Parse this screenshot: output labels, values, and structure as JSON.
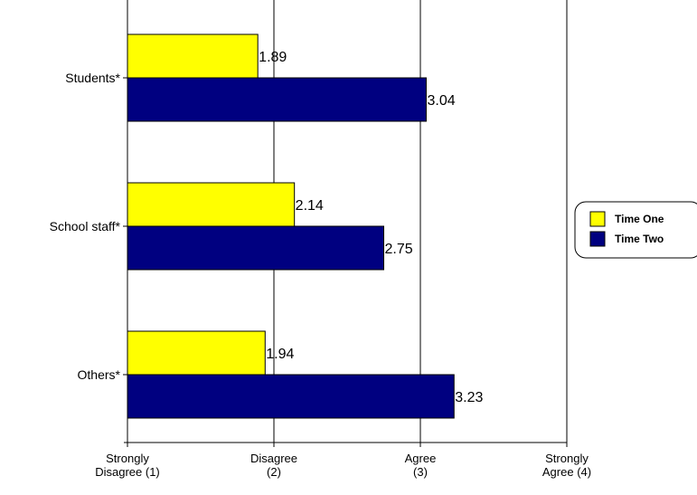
{
  "chart_data": {
    "type": "bar",
    "orientation": "horizontal",
    "title": "",
    "xlabel": "",
    "ylabel": "",
    "categories": [
      "Students*",
      "School staff*",
      "Others*"
    ],
    "series": [
      {
        "name": "Time One",
        "values": [
          1.89,
          2.14,
          1.94
        ],
        "color": "#ffff00"
      },
      {
        "name": "Time Two",
        "values": [
          3.04,
          2.75,
          3.23
        ],
        "color": "#000080"
      }
    ],
    "xlim": [
      1,
      4
    ],
    "xticks": [
      {
        "value": 1,
        "lines": [
          "Strongly",
          "Disagree (1)"
        ]
      },
      {
        "value": 2,
        "lines": [
          "Disagree",
          "(2)"
        ]
      },
      {
        "value": 3,
        "lines": [
          "Agree",
          "(3)"
        ]
      },
      {
        "value": 4,
        "lines": [
          "Strongly",
          "Agree (4)"
        ]
      }
    ],
    "grid": true,
    "legend_position": "right"
  }
}
